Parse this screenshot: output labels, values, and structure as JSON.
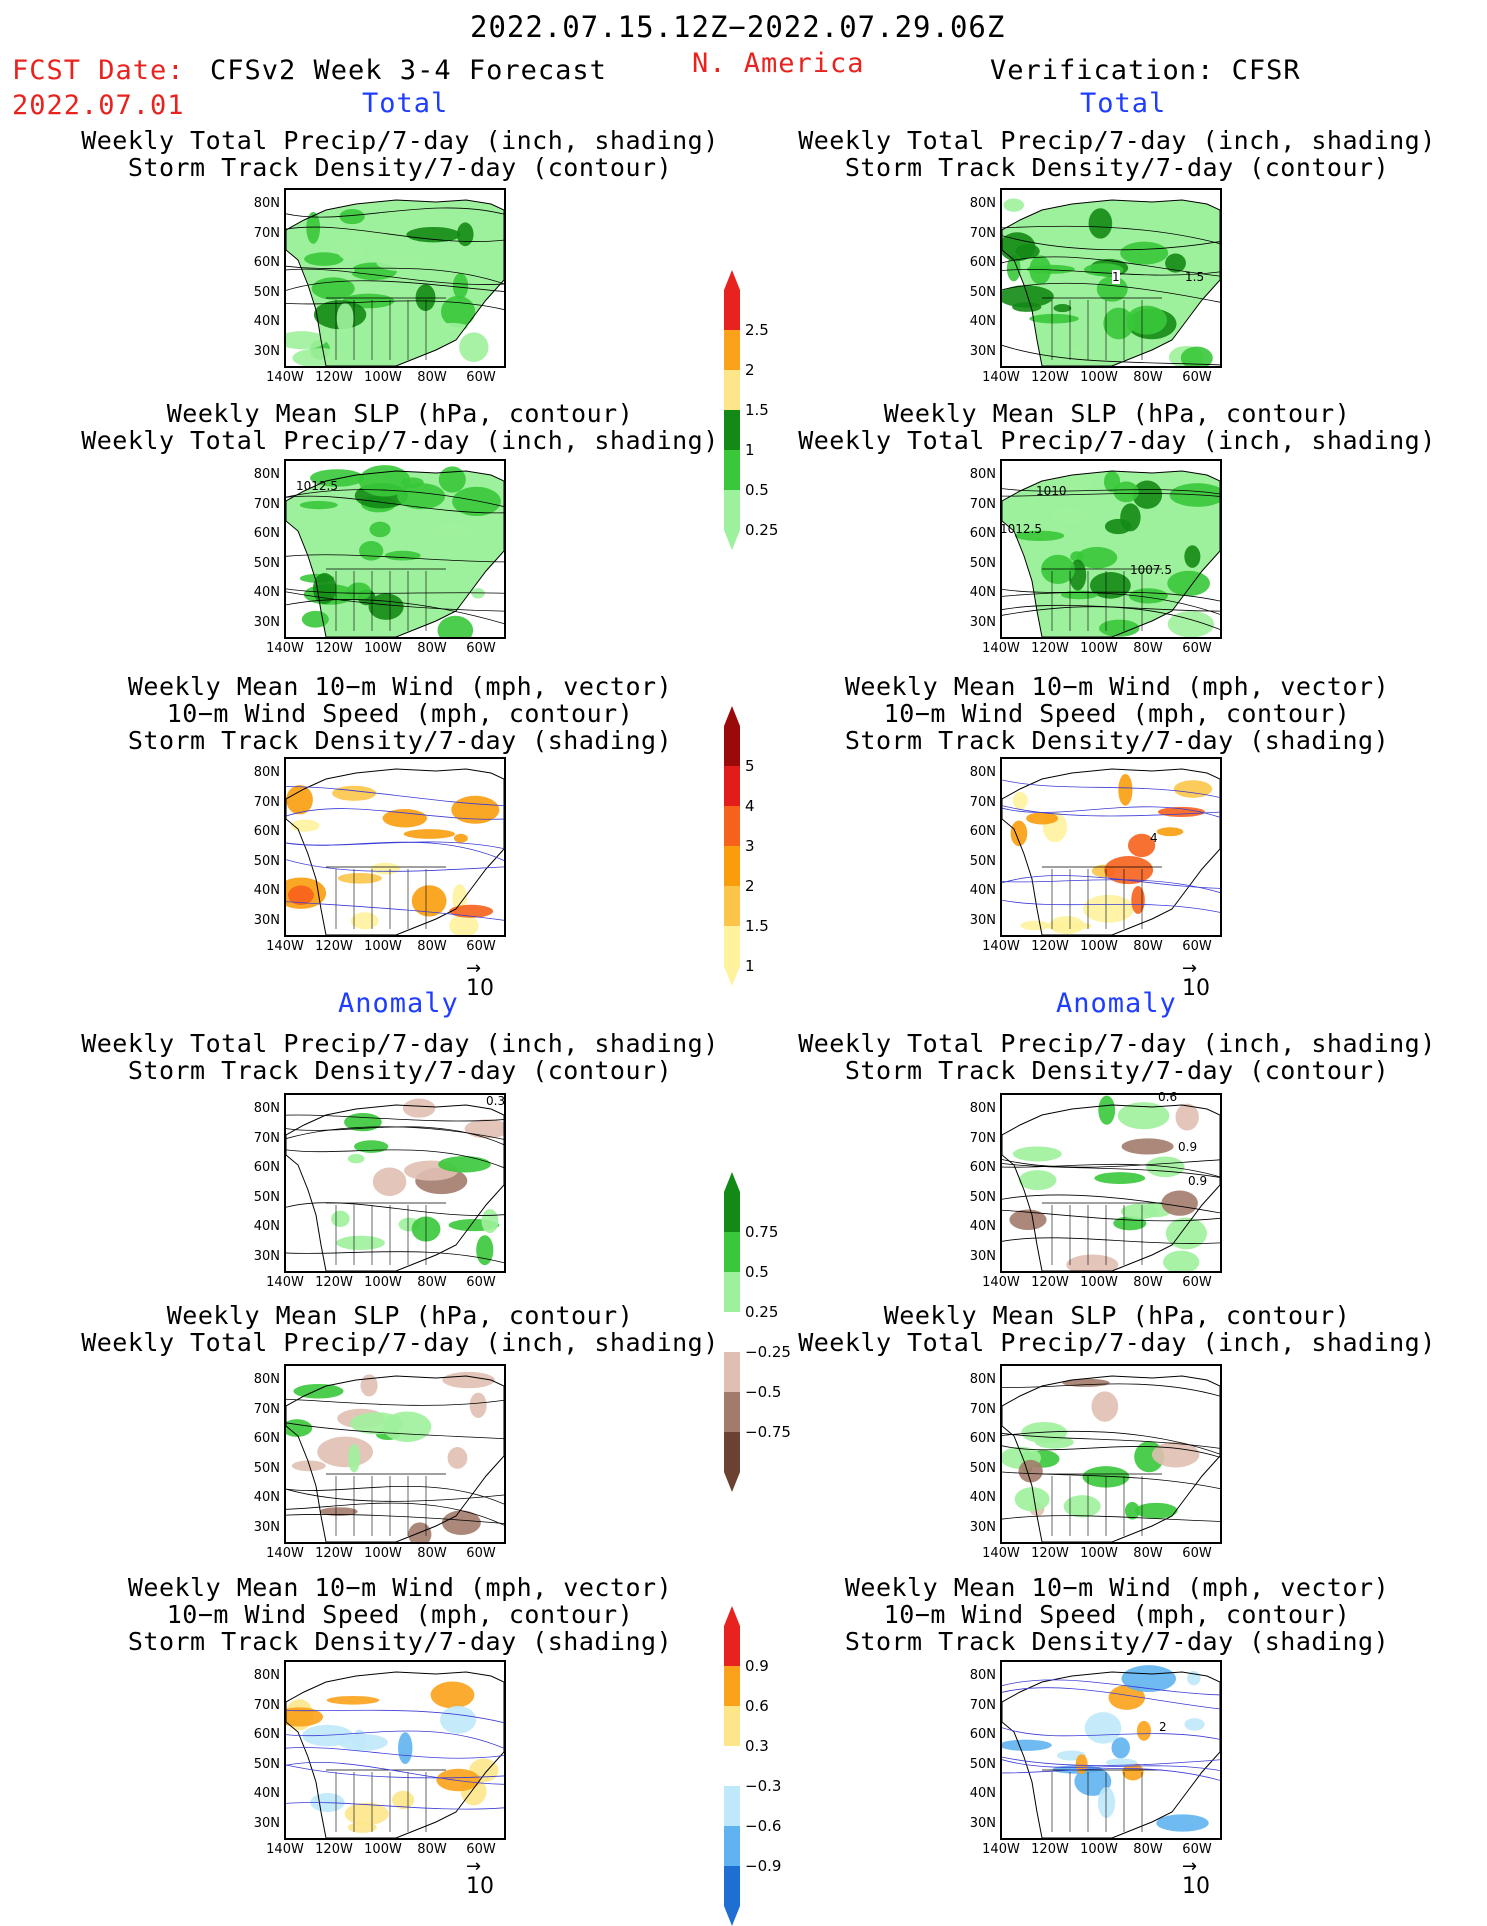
{
  "header": {
    "date_range": "2022.07.15.12Z−2022.07.29.06Z",
    "region": "N. America",
    "fcst_label": "FCST Date:",
    "fcst_date": "2022.07.01",
    "model_title": "CFSv2 Week 3-4 Forecast",
    "verification": "Verification: CFSR",
    "section_total": "Total",
    "section_anomaly": "Anomaly"
  },
  "panel_titles": {
    "precip_storm": [
      "Weekly Total Precip/7-day (inch, shading)",
      "Storm Track Density/7-day (contour)"
    ],
    "slp_precip": [
      "Weekly Mean SLP (hPa, contour)",
      "Weekly Total Precip/7-day (inch, shading)"
    ],
    "wind_storm": [
      "Weekly Mean 10−m Wind (mph, vector)",
      "10−m Wind Speed (mph, contour)",
      "Storm Track Density/7-day (shading)"
    ]
  },
  "axes": {
    "lat_labels": [
      "80N",
      "70N",
      "60N",
      "50N",
      "40N",
      "30N"
    ],
    "lon_labels": [
      "140W",
      "120W",
      "100W",
      "80W",
      "60W"
    ]
  },
  "vector_ref": "10",
  "contour_labels": {
    "slp_fcst": "1012.5",
    "slp_obs_a": "1010",
    "slp_obs_b": "1012.5",
    "slp_obs_c": "1007.5",
    "storm_obs_a": "1",
    "storm_obs_b": "1.5",
    "wind_obs": "4",
    "anom_fcst": "0.3",
    "anom_obs_a": "0.6",
    "anom_obs_b": "0.9",
    "anom_obs_c": "0.9",
    "wind_anom_obs": "2"
  },
  "colorbars": {
    "precip_total": {
      "labels": [
        "2.5",
        "2",
        "1.5",
        "1",
        "0.5",
        "0.25"
      ],
      "colors": [
        "#e8231f",
        "#f9a21a",
        "#fde68a",
        "#138a15",
        "#39c83a",
        "#9ef19c"
      ]
    },
    "storm_total": {
      "labels": [
        "5",
        "4",
        "3",
        "2",
        "1.5",
        "1"
      ],
      "colors": [
        "#9b0a0a",
        "#e21b1b",
        "#f6621c",
        "#f99d0d",
        "#fbc54a",
        "#fef29c"
      ]
    },
    "precip_anom": {
      "labels": [
        "0.75",
        "0.5",
        "0.25",
        "−0.25",
        "−0.5",
        "−0.75"
      ],
      "colors": [
        "#138a15",
        "#39c83a",
        "#9ef19c",
        "#ffffff",
        "#e0bfb3",
        "#a37b6b",
        "#6b4232"
      ]
    },
    "storm_anom": {
      "labels": [
        "0.9",
        "0.6",
        "0.3",
        "−0.3",
        "−0.6",
        "−0.9"
      ],
      "colors": [
        "#e8231f",
        "#f9a21a",
        "#fde68a",
        "#ffffff",
        "#bfe9fb",
        "#5fb3f0",
        "#1f6fd3"
      ]
    }
  }
}
